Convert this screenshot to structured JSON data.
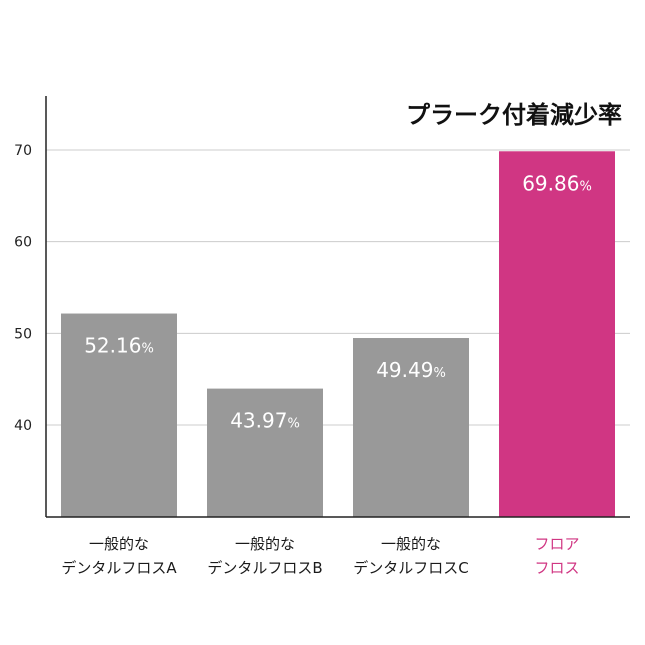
{
  "chart_data": {
    "type": "bar",
    "title": "プラーク付着減少率",
    "xlabel": "",
    "ylabel": "",
    "ylim": [
      30,
      75
    ],
    "yticks": [
      40,
      50,
      60,
      70
    ],
    "grid": true,
    "unit": "%",
    "categories": [
      [
        "一般的な",
        "デンタルフロスA"
      ],
      [
        "一般的な",
        "デンタルフロスB"
      ],
      [
        "一般的な",
        "デンタルフロスC"
      ],
      [
        "フロア",
        "フロス"
      ]
    ],
    "values": [
      52.16,
      43.97,
      49.49,
      69.86
    ],
    "value_labels": [
      "52.16",
      "43.97",
      "49.49",
      "69.86"
    ],
    "colors": [
      "#999999",
      "#999999",
      "#999999",
      "#d03683"
    ],
    "label_colors": [
      "#1a1a1a",
      "#1a1a1a",
      "#1a1a1a",
      "#d03683"
    ]
  }
}
